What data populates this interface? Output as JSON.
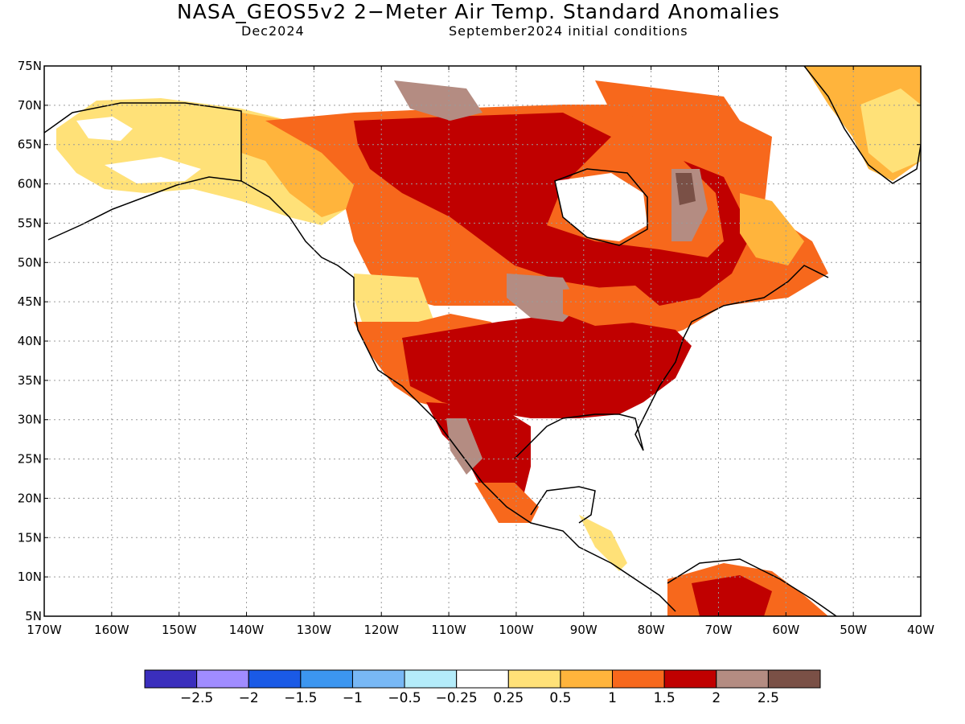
{
  "title": "NASA_GEOS5v2 2−Meter Air Temp. Standard Anomalies",
  "subtitle_left": "Dec2024",
  "subtitle_right": "September2024 initial conditions",
  "map": {
    "lat_range": [
      5,
      75
    ],
    "lon_range": [
      -170,
      -40
    ],
    "lat_ticks": [
      "75N",
      "70N",
      "65N",
      "60N",
      "55N",
      "50N",
      "45N",
      "40N",
      "35N",
      "30N",
      "25N",
      "20N",
      "15N",
      "10N",
      "5N"
    ],
    "lon_ticks": [
      "170W",
      "160W",
      "150W",
      "140W",
      "130W",
      "120W",
      "110W",
      "100W",
      "90W",
      "80W",
      "70W",
      "60W",
      "50W",
      "40W"
    ],
    "grid": true,
    "grid_style": "dotted"
  },
  "colorbar": {
    "colors": [
      "#3a2ebd",
      "#a08cff",
      "#1a5ae6",
      "#3c96f0",
      "#78b8f5",
      "#b4ecfa",
      "#ffffff",
      "#ffe178",
      "#ffb43c",
      "#f7681c",
      "#c00000",
      "#b48c82",
      "#7a5046"
    ],
    "labels": [
      "−2.5",
      "−2",
      "−1.5",
      "−1",
      "−0.5",
      "−0.25",
      "0.25",
      "0.5",
      "1",
      "1.5",
      "2",
      "2.5"
    ]
  }
}
